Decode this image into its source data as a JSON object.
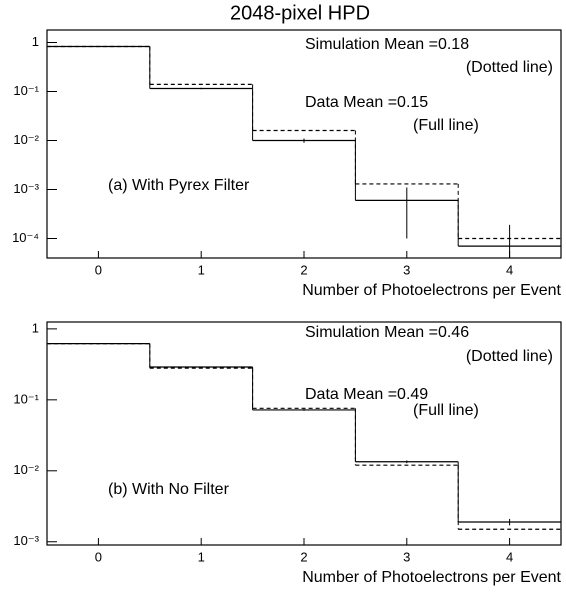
{
  "chart_data": [
    {
      "type": "histogram",
      "title": "2048-pixel HPD",
      "x_label": "Number of Photoelectrons per Event",
      "annotations": [
        "Simulation Mean =0.18",
        "(Dotted line)",
        "Data Mean =0.15",
        "(Full line)",
        "(a) With Pyrex Filter"
      ],
      "bins": [
        -0.5,
        0.5,
        1.5,
        2.5,
        3.5,
        4.5
      ],
      "xlim": [
        -0.5,
        4.5
      ],
      "xticks": [
        0,
        1,
        2,
        3,
        4
      ],
      "ylim": [
        4e-05,
        1.8
      ],
      "log_y": true,
      "yticks": [
        1,
        {
          "value": 0.1,
          "label": "10⁻¹"
        },
        {
          "value": 0.01,
          "label": "10⁻²"
        },
        {
          "value": 0.001,
          "label": "10⁻³"
        },
        {
          "value": 0.0001,
          "label": "10⁻⁴"
        }
      ],
      "series": [
        {
          "style": "dotted",
          "color": "#000000",
          "values": [
            0.83,
            0.14,
            0.016,
            0.0013,
            0.0001
          ]
        },
        {
          "style": "solid",
          "color": "#000000",
          "values": [
            0.83,
            0.115,
            0.01,
            0.0006,
            7e-05
          ],
          "errors": [
            0.01,
            0.004,
            0.001,
            0.0005,
            0.00012
          ]
        }
      ]
    },
    {
      "type": "histogram",
      "x_label": "Number of Photoelectrons per Event",
      "annotations": [
        "Simulation Mean =0.46",
        "(Dotted line)",
        "Data Mean =0.49",
        "(Full line)",
        "(b) With No Filter"
      ],
      "bins": [
        -0.5,
        0.5,
        1.5,
        2.5,
        3.5,
        4.5
      ],
      "xlim": [
        -0.5,
        4.5
      ],
      "xticks": [
        0,
        1,
        2,
        3,
        4
      ],
      "ylim": [
        0.0009,
        1.25
      ],
      "log_y": true,
      "yticks": [
        1,
        {
          "value": 0.1,
          "label": "10⁻¹"
        },
        {
          "value": 0.01,
          "label": "10⁻²"
        },
        {
          "value": 0.001,
          "label": "10⁻³"
        }
      ],
      "series": [
        {
          "style": "dotted",
          "color": "#000000",
          "values": [
            0.62,
            0.28,
            0.076,
            0.012,
            0.0015
          ]
        },
        {
          "style": "solid",
          "color": "#000000",
          "values": [
            0.62,
            0.29,
            0.072,
            0.0134,
            0.0019
          ],
          "errors": [
            0.01,
            0.005,
            0.002,
            0.0006,
            0.0002
          ]
        }
      ]
    }
  ]
}
